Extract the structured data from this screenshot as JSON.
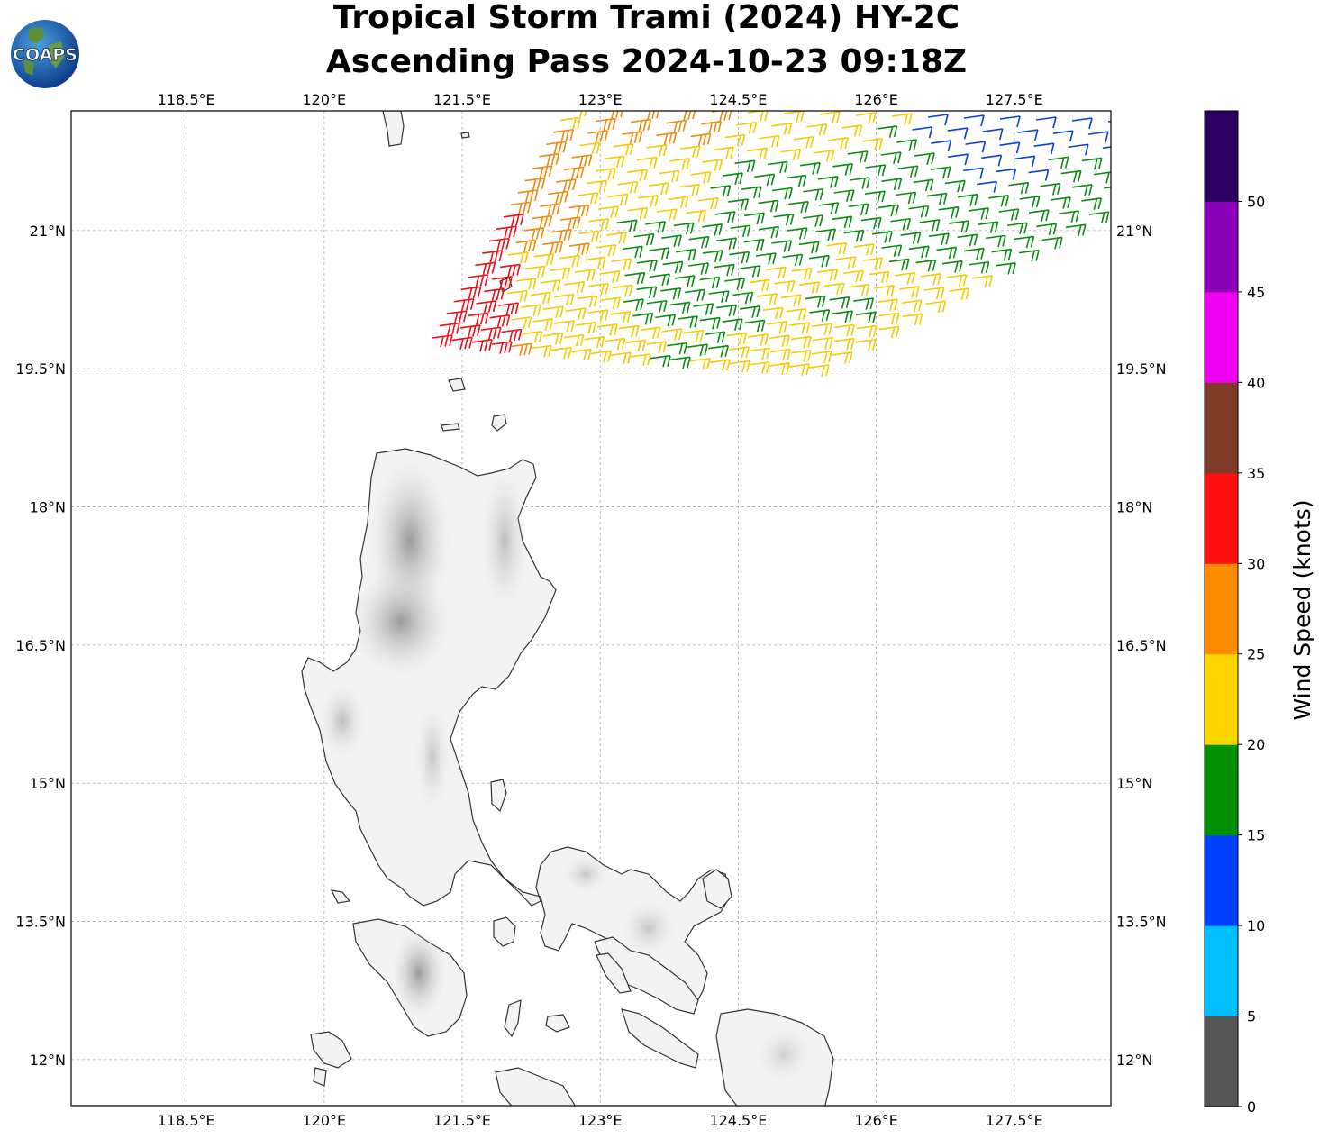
{
  "title_line1": "Tropical Storm Trami (2024) HY-2C",
  "title_line2": "Ascending Pass 2024-10-23 09:18Z",
  "logo_text": "COAPS",
  "map": {
    "lon_range": [
      117.25,
      128.55
    ],
    "lat_range": [
      11.5,
      22.3
    ],
    "lon_ticks": [
      "118.5°E",
      "120°E",
      "121.5°E",
      "123°E",
      "124.5°E",
      "126°E",
      "127.5°E"
    ],
    "lat_ticks": [
      "21°N",
      "19.5°N",
      "18°N",
      "16.5°N",
      "15°N",
      "13.5°N",
      "12°N"
    ],
    "gridlines": true,
    "land_shading": "grayscale terrain"
  },
  "colorbar": {
    "label": "Wind Speed (knots)",
    "ticks": [
      "0",
      "5",
      "10",
      "15",
      "20",
      "25",
      "30",
      "35",
      "40",
      "45",
      "50"
    ],
    "colors": [
      "#555555",
      "#00bfff",
      "#0040ff",
      "#009000",
      "#ffd700",
      "#ff8c00",
      "#ff1010",
      "#7f3a28",
      "#f000f0",
      "#8a00b8",
      "#2c0060"
    ]
  },
  "wind_swath": {
    "type": "wind barbs",
    "color_by": "wind speed",
    "bands_present": [
      "red",
      "orange",
      "yellow",
      "green",
      "blue"
    ]
  }
}
